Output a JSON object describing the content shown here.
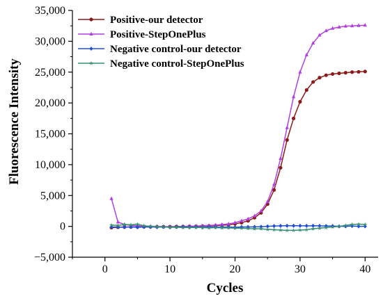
{
  "chart_data": {
    "type": "line",
    "title": "",
    "xlabel": "Cycles",
    "ylabel": "Fluorescence Intensity",
    "xlim": [
      -5,
      42
    ],
    "ylim": [
      -5000,
      35000
    ],
    "xticks": [
      0,
      10,
      20,
      30,
      40
    ],
    "yticks": [
      -5000,
      0,
      5000,
      10000,
      15000,
      20000,
      25000,
      30000,
      35000
    ],
    "xtick_labels": [
      "0",
      "10",
      "20",
      "30",
      "40"
    ],
    "ytick_labels": [
      "−5,000",
      "0",
      "5,000",
      "10,000",
      "15,000",
      "20,000",
      "25,000",
      "30,000",
      "35,000"
    ],
    "grid": false,
    "legend_position": "top-left",
    "x": [
      1,
      2,
      3,
      4,
      5,
      6,
      7,
      8,
      9,
      10,
      11,
      12,
      13,
      14,
      15,
      16,
      17,
      18,
      19,
      20,
      21,
      22,
      23,
      24,
      25,
      26,
      27,
      28,
      29,
      30,
      31,
      32,
      33,
      34,
      35,
      36,
      37,
      38,
      39,
      40
    ],
    "series": [
      {
        "name": "Positive-our detector",
        "color": "#8b1a1a",
        "marker": "circle",
        "values": [
          -200,
          -150,
          -120,
          -100,
          -100,
          -80,
          -80,
          -60,
          -50,
          -50,
          -30,
          -20,
          0,
          20,
          50,
          80,
          120,
          180,
          250,
          400,
          600,
          900,
          1400,
          2200,
          3600,
          5900,
          9500,
          14000,
          17500,
          20200,
          22100,
          23400,
          24100,
          24500,
          24700,
          24800,
          24900,
          25000,
          25050,
          25100
        ]
      },
      {
        "name": "Positive-StepOnePlus",
        "color": "#b23fe0",
        "marker": "triangle",
        "values": [
          4500,
          700,
          300,
          150,
          100,
          50,
          0,
          0,
          -50,
          -50,
          -50,
          0,
          0,
          50,
          100,
          150,
          200,
          300,
          400,
          600,
          900,
          1200,
          1700,
          2500,
          4000,
          6800,
          11000,
          16000,
          21000,
          25000,
          27800,
          29700,
          31000,
          31700,
          32100,
          32300,
          32450,
          32500,
          32550,
          32600
        ]
      },
      {
        "name": "Negative control-our detector",
        "color": "#1f4fd6",
        "marker": "diamond",
        "values": [
          -100,
          -100,
          -120,
          -100,
          -150,
          -100,
          -100,
          -120,
          -100,
          -150,
          -100,
          -100,
          -120,
          -100,
          -150,
          -100,
          -100,
          -120,
          -100,
          -150,
          -100,
          -100,
          -80,
          -50,
          0,
          50,
          80,
          100,
          100,
          100,
          80,
          100,
          80,
          50,
          50,
          0,
          0,
          50,
          0,
          0
        ]
      },
      {
        "name": "Negative control-StepOnePlus",
        "color": "#3a8f6e",
        "marker": "star",
        "values": [
          200,
          150,
          300,
          250,
          350,
          100,
          0,
          -50,
          -100,
          -150,
          -150,
          -200,
          -200,
          -200,
          -200,
          -250,
          -200,
          -250,
          -250,
          -300,
          -300,
          -350,
          -400,
          -400,
          -500,
          -550,
          -600,
          -650,
          -650,
          -600,
          -550,
          -400,
          -300,
          -200,
          -100,
          0,
          150,
          300,
          350,
          300
        ]
      }
    ]
  }
}
